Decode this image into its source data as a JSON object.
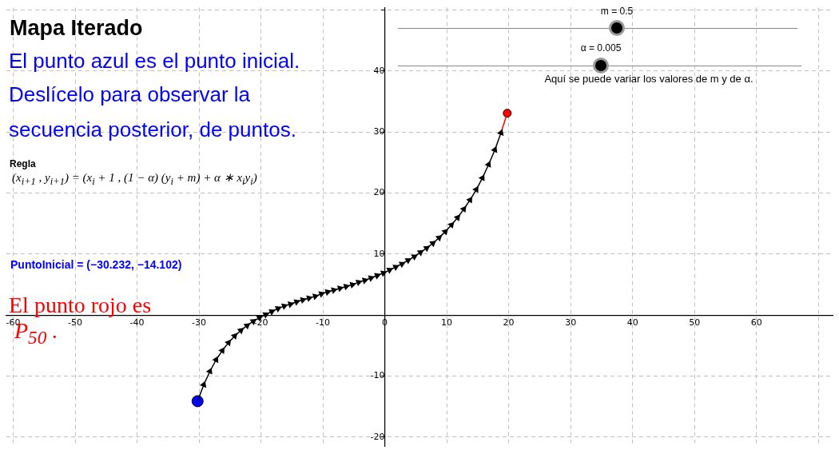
{
  "chart_data": {
    "type": "line",
    "title": "Mapa Iterado",
    "annotations": [
      "El punto azul es el punto inicial.",
      "Deslícelo para observar la",
      "secuencia  posterior, de puntos.",
      "Regla",
      "(x$_{i+1}$ , y$_{i+1}$) = (x$_{i}$ + 1 , (1 − α) (y$_{i}$ + m) + α ∗ x$_{i}$y$_{i}$)",
      "PuntoInicial = (−30.232, −14.102)",
      "El punto rojo es",
      "P$_{50}$ .",
      "m = 0.5",
      "α = 0.005",
      "Aquí se puede variar los valores de m y de α."
    ],
    "series": [
      {
        "color": "#000000",
        "marker": "triangle",
        "x": [
          -30.232,
          -29.232,
          -28.232,
          -27.232,
          -26.232,
          -25.232,
          -24.232,
          -23.232,
          -22.232,
          -21.232,
          -20.232,
          -19.232,
          -18.232,
          -17.232,
          -16.232,
          -15.232,
          -14.232,
          -13.232,
          -12.232,
          -11.232,
          -10.232,
          -9.232,
          -8.232,
          -7.232,
          -6.232,
          -5.232,
          -4.232,
          -3.232,
          -2.232,
          -1.232,
          -0.232,
          0.768,
          1.768,
          2.768,
          3.768,
          4.768,
          5.768,
          6.768,
          7.768,
          8.768,
          9.768,
          10.768,
          11.768,
          12.768,
          13.768,
          14.768,
          15.768,
          16.768,
          17.768,
          18.768
        ],
        "values": [
          -14.1,
          -11.4,
          -9.2,
          -7.3,
          -5.8,
          -4.5,
          -3.4,
          -2.5,
          -1.7,
          -1.0,
          -0.4,
          0.1,
          0.6,
          1.1,
          1.5,
          1.8,
          2.2,
          2.5,
          2.8,
          3.1,
          3.5,
          3.8,
          4.1,
          4.4,
          4.7,
          5.0,
          5.4,
          5.7,
          6.1,
          6.5,
          6.9,
          7.4,
          7.9,
          8.4,
          9.0,
          9.6,
          10.3,
          11.0,
          11.8,
          12.7,
          13.7,
          14.8,
          16.0,
          17.4,
          18.9,
          20.6,
          22.5,
          24.7,
          27.1,
          29.9
        ]
      },
      {
        "color": "#ff0000",
        "marker": "triangle",
        "x": [
          18.768,
          19.768
        ],
        "values": [
          29.9,
          33.1
        ]
      },
      {
        "type": "scatter",
        "color": "#0000ff",
        "marker": "circle",
        "x": [
          -30.232
        ],
        "values": [
          -14.1
        ]
      },
      {
        "type": "scatter",
        "color": "#ff0000",
        "marker": "circle",
        "x": [
          19.768
        ],
        "values": [
          33.1
        ]
      }
    ],
    "xlim": [
      -61.1,
      72.3
    ],
    "ylim": [
      -21.5,
      50.4
    ],
    "xticks": [
      -60,
      -50,
      -40,
      -30,
      -20,
      -10,
      0,
      10,
      20,
      30,
      40,
      50,
      60,
      {
        "value": 70,
        "label": null
      }
    ],
    "yticks": [
      -20,
      -10,
      10,
      20,
      30,
      40,
      {
        "value": 50,
        "label": null
      }
    ],
    "grid": true,
    "legend": false,
    "line_style": "solid"
  }
}
